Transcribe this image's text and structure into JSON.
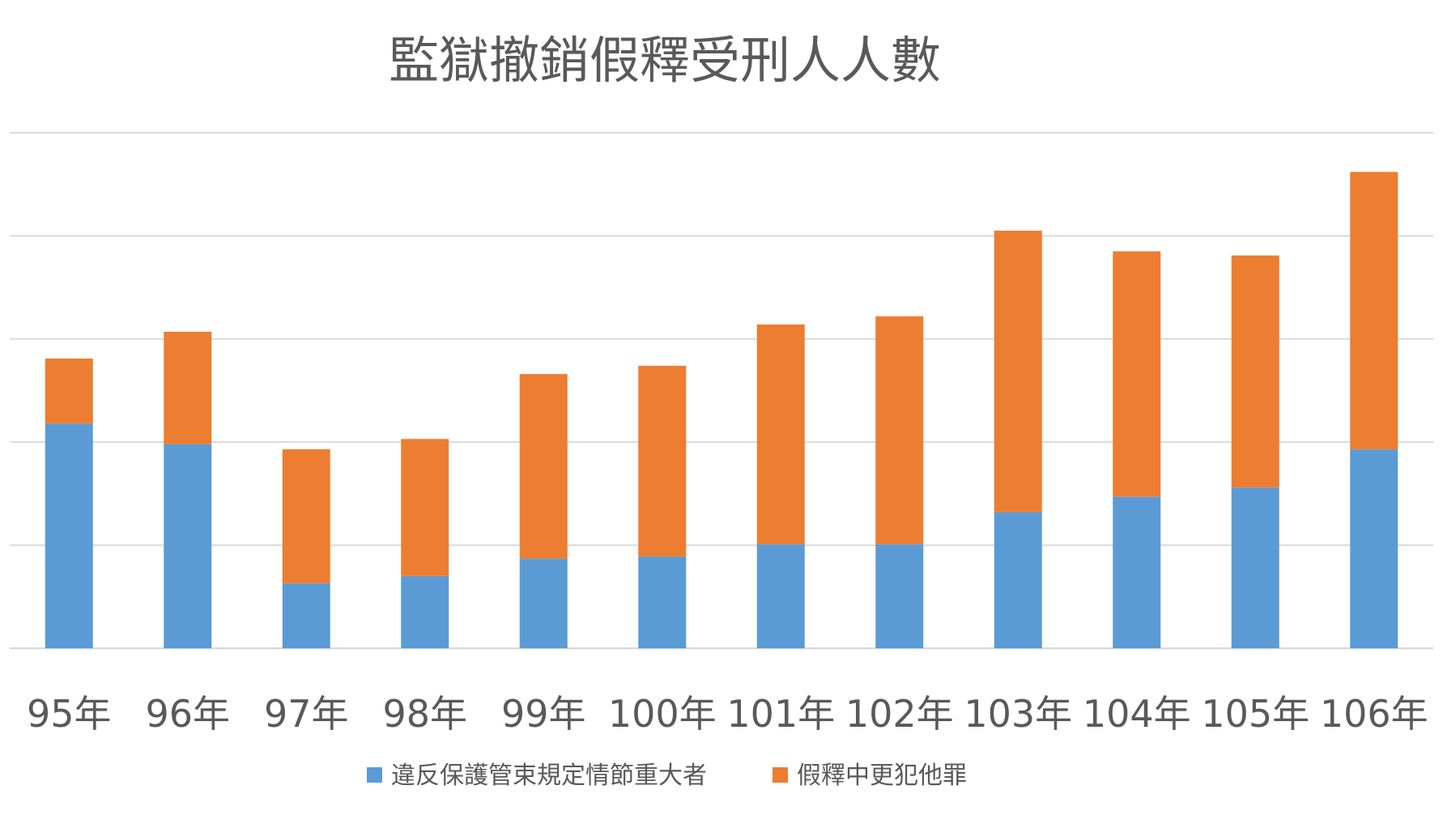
{
  "chart_data": {
    "type": "bar",
    "stacked": true,
    "title": "監獄撤銷假釋受刑人人數",
    "xlabel": "",
    "ylabel": "",
    "categories": [
      "95年",
      "96年",
      "97年",
      "98年",
      "99年",
      "100年",
      "101年",
      "102年",
      "103年",
      "104年",
      "105年",
      "106年"
    ],
    "series": [
      {
        "name": "違反保護管束規定情節重大者",
        "color": "#5b9bd5",
        "values": [
          1090,
          990,
          315,
          350,
          435,
          445,
          505,
          505,
          660,
          735,
          780,
          965
        ]
      },
      {
        "name": "假釋中更犯他罪",
        "color": "#ed7d31",
        "values": [
          315,
          545,
          650,
          665,
          895,
          925,
          1065,
          1105,
          1365,
          1190,
          1125,
          1345
        ]
      }
    ],
    "ylim": [
      0,
      2500
    ],
    "y_gridlines": [
      0,
      500,
      1000,
      1500,
      2000,
      2500
    ],
    "y_tick_labels_visible": false,
    "grid": true,
    "legend": "bottom"
  }
}
